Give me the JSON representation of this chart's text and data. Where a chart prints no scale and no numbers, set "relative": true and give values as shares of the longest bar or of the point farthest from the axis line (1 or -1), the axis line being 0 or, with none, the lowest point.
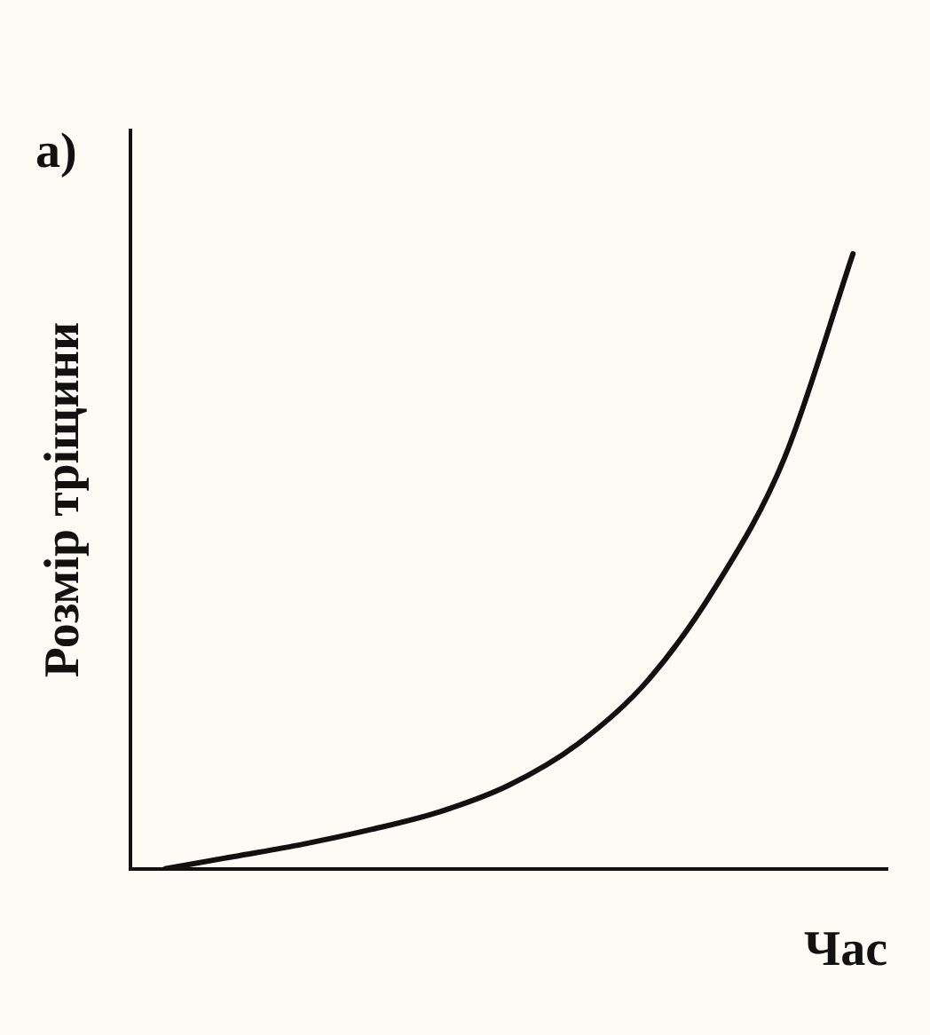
{
  "chart_data": {
    "type": "line",
    "title": "a)",
    "xlabel": "Час",
    "ylabel": "Розмір тріщини",
    "relative": true,
    "categories": [
      null,
      null,
      null,
      null,
      null,
      null,
      null,
      null,
      null,
      null,
      null
    ],
    "series": [
      {
        "color": "#111111",
        "values": [
          0,
          0.02,
          0.04,
          0.064,
          0.093,
          0.136,
          0.203,
          0.304,
          0.458,
          0.667,
          1
        ]
      }
    ],
    "grid": false,
    "legend": false,
    "marker": "none",
    "line_style": "solid"
  }
}
